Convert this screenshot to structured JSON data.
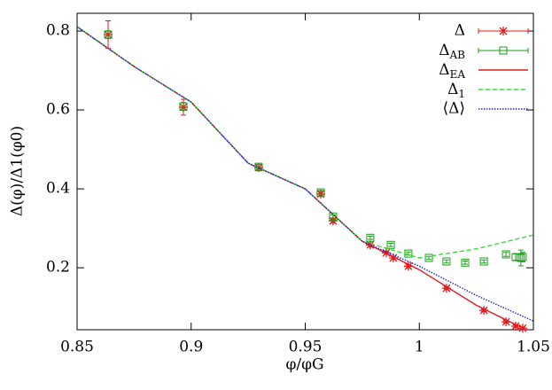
{
  "chart_data": {
    "type": "scatter",
    "x_label": "φ/φG",
    "y_label": "Δ(φ)/Δ1(φ0)",
    "xlim": [
      0.85,
      1.05
    ],
    "ylim": [
      0.043,
      0.845
    ],
    "xticks": [
      0.85,
      0.9,
      0.95,
      1,
      1.05
    ],
    "yticks": [
      0.2,
      0.4,
      0.6,
      0.8
    ],
    "legend": "top-right",
    "series": [
      {
        "name": "Δ",
        "color": "#e41a1c",
        "style": "points",
        "marker": "star",
        "x": [
          0.8636,
          0.8966,
          0.9296,
          0.9568,
          0.9622,
          0.9785,
          0.9855,
          0.9886,
          0.9952,
          1.0119,
          1.0283,
          1.038,
          1.0422,
          1.0453
        ],
        "values": [
          0.791,
          0.607,
          0.454,
          0.387,
          0.319,
          0.258,
          0.238,
          0.225,
          0.204,
          0.148,
          0.092,
          0.063,
          0.052,
          0.047
        ],
        "errors": [
          0.035,
          0.02,
          0.008,
          0.006,
          0.005,
          0.005,
          0.004,
          0.004,
          0.004,
          0.003,
          0.003,
          0.003,
          0.003,
          0.003
        ]
      },
      {
        "name": "ΔAB",
        "color": "#1a9e1a",
        "style": "points",
        "marker": "square",
        "x": [
          0.8636,
          0.8966,
          0.9296,
          0.9568,
          0.9622,
          0.9785,
          0.9875,
          0.9952,
          1.0042,
          1.0119,
          1.0201,
          1.0283,
          1.038,
          1.0422,
          1.0445,
          1.0453
        ],
        "values": [
          0.791,
          0.609,
          0.456,
          0.391,
          0.33,
          0.276,
          0.258,
          0.236,
          0.225,
          0.216,
          0.213,
          0.216,
          0.234,
          0.227,
          0.225,
          0.227
        ],
        "errors": [
          0.01,
          0.01,
          0.006,
          0.005,
          0.004,
          0.004,
          0.004,
          0.004,
          0.004,
          0.004,
          0.004,
          0.004,
          0.005,
          0.008,
          0.02,
          0.012
        ]
      },
      {
        "name": "ΔEA",
        "color": "#e41a1c",
        "style": "line",
        "dash": "none",
        "x": [
          0.85,
          0.875,
          0.9,
          0.925,
          0.95,
          0.975,
          1.0,
          1.025,
          1.045
        ],
        "values": [
          0.811,
          0.71,
          0.62,
          0.465,
          0.4,
          0.267,
          0.195,
          0.105,
          0.048
        ]
      },
      {
        "name": "Δ1",
        "color": "#33dd33",
        "style": "line",
        "dash": "5 3",
        "x": [
          0.85,
          0.875,
          0.9,
          0.925,
          0.95,
          0.975,
          1.0,
          1.025,
          1.05
        ],
        "values": [
          0.811,
          0.71,
          0.62,
          0.465,
          0.4,
          0.267,
          0.225,
          0.248,
          0.283
        ]
      },
      {
        "name": "⟨Δ⟩",
        "color": "#2222cc",
        "style": "line",
        "dash": "1.5 1.5",
        "x": [
          0.85,
          0.875,
          0.9,
          0.925,
          0.95,
          0.975,
          1.0,
          1.025,
          1.05
        ],
        "values": [
          0.811,
          0.71,
          0.62,
          0.465,
          0.4,
          0.267,
          0.204,
          0.13,
          0.065
        ]
      }
    ]
  }
}
